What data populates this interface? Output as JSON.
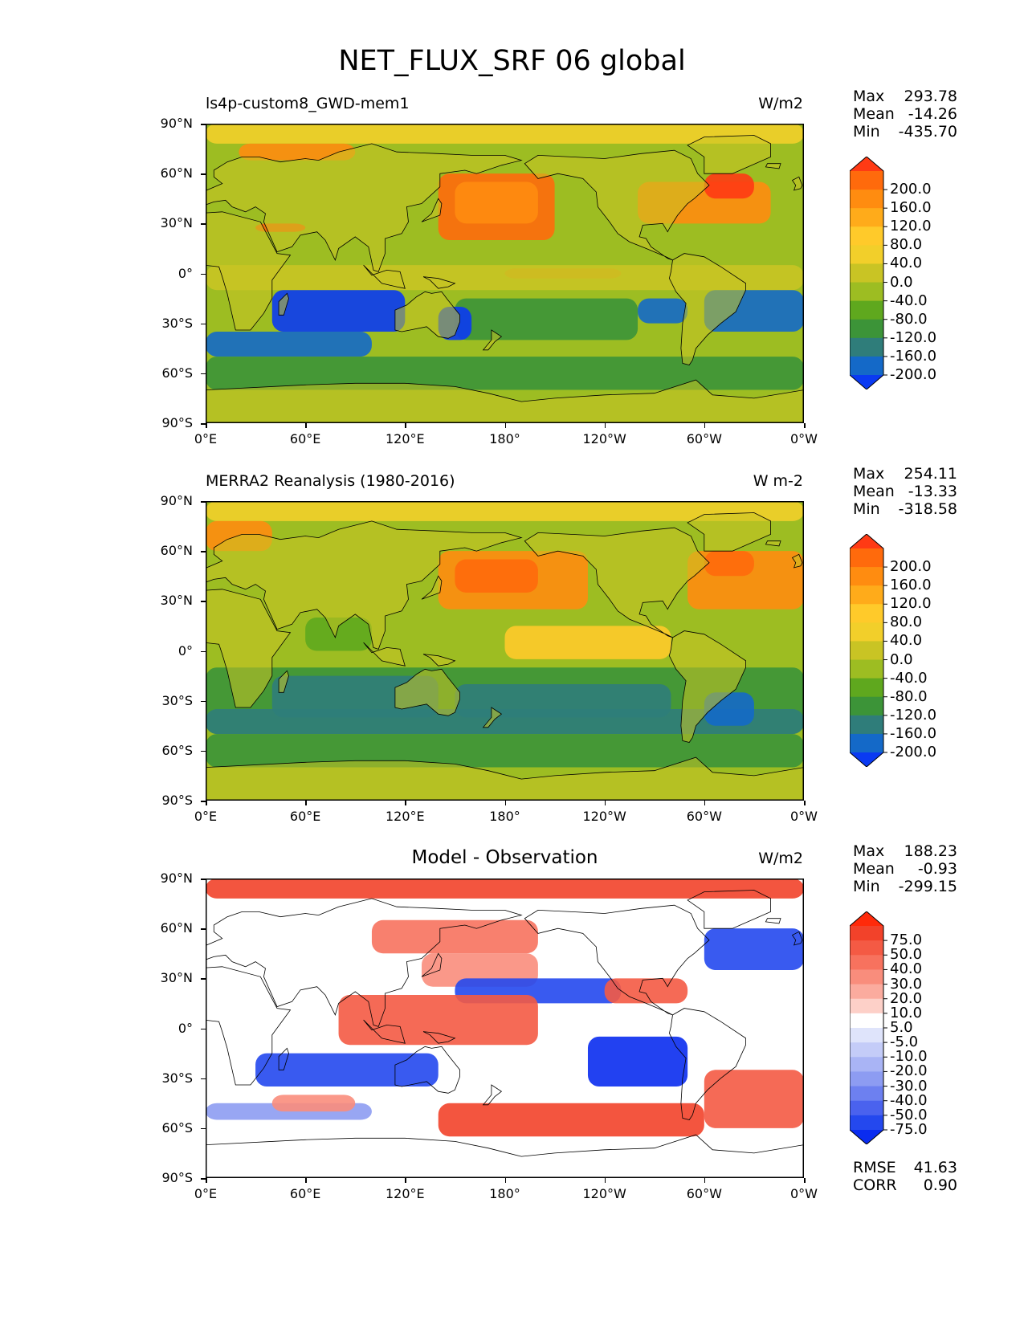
{
  "title": "NET_FLUX_SRF 06 global",
  "lat_ticks": [
    "90°N",
    "60°N",
    "30°N",
    "0°",
    "30°S",
    "60°S",
    "90°S"
  ],
  "lon_ticks": [
    "0°E",
    "60°E",
    "120°E",
    "180°",
    "120°W",
    "60°W",
    "0°W"
  ],
  "panels": [
    {
      "title_left": "ls4p-custom8_GWD-mem1",
      "title_center": "",
      "units": "W/m2",
      "stats": [
        {
          "k": "Max",
          "v": "293.78"
        },
        {
          "k": "Mean",
          "v": "-14.26"
        },
        {
          "k": "Min",
          "v": "-435.70"
        }
      ],
      "colorbar": {
        "labels": [
          "200.0",
          "160.0",
          "120.0",
          "80.0",
          "40.0",
          "0.0",
          "-40.0",
          "-80.0",
          "-120.0",
          "-160.0",
          "-200.0"
        ],
        "colors": [
          "#ff3a14",
          "#ff6a0c",
          "#ff8c10",
          "#ffab1a",
          "#ffca2a",
          "#f2cf2a",
          "#c9c424",
          "#9dbd22",
          "#5fa81e",
          "#3c9438",
          "#2f7d7a",
          "#1469c8",
          "#0a3af2"
        ]
      }
    },
    {
      "title_left": "MERRA2 Reanalysis (1980-2016)",
      "title_center": "",
      "units": "W m-2",
      "stats": [
        {
          "k": "Max",
          "v": "254.11"
        },
        {
          "k": "Mean",
          "v": "-13.33"
        },
        {
          "k": "Min",
          "v": "-318.58"
        }
      ],
      "colorbar": {
        "labels": [
          "200.0",
          "160.0",
          "120.0",
          "80.0",
          "40.0",
          "0.0",
          "-40.0",
          "-80.0",
          "-120.0",
          "-160.0",
          "-200.0"
        ],
        "colors": [
          "#ff3a14",
          "#ff6a0c",
          "#ff8c10",
          "#ffab1a",
          "#ffca2a",
          "#f2cf2a",
          "#c9c424",
          "#9dbd22",
          "#5fa81e",
          "#3c9438",
          "#2f7d7a",
          "#1469c8",
          "#0a3af2"
        ]
      }
    },
    {
      "title_left": "",
      "title_center": "Model - Observation",
      "units": "W/m2",
      "stats": [
        {
          "k": "Max",
          "v": "188.23"
        },
        {
          "k": "Mean",
          "v": "-0.93"
        },
        {
          "k": "Min",
          "v": "-299.15"
        }
      ],
      "extra_stats": [
        {
          "k": "RMSE",
          "v": "41.63"
        },
        {
          "k": "CORR",
          "v": "0.90"
        }
      ],
      "colorbar": {
        "labels": [
          "75.0",
          "50.0",
          "40.0",
          "30.0",
          "20.0",
          "10.0",
          "5.0",
          "-5.0",
          "-10.0",
          "-20.0",
          "-30.0",
          "-40.0",
          "-50.0",
          "-75.0"
        ],
        "colors": [
          "#ff2a0a",
          "#f2422a",
          "#f45a44",
          "#f7725e",
          "#f98d7c",
          "#fbab9e",
          "#fdd0c8",
          "#ffffff",
          "#dfe4fb",
          "#c4ccf8",
          "#a9b4f5",
          "#8d9cf2",
          "#6d80f0",
          "#4a62ee",
          "#2448ee",
          "#0a2cf0"
        ]
      }
    }
  ]
}
